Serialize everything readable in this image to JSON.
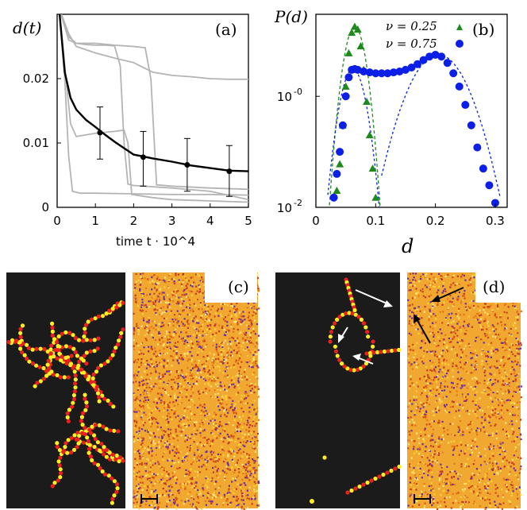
{
  "chart_data": [
    {
      "panel": "(a)",
      "type": "line",
      "ylabel": "d(t)",
      "xlabel": "time t · 10^4",
      "xlim": [
        0,
        5
      ],
      "ylim": [
        0,
        0.03
      ],
      "xticks": [
        "0",
        "1",
        "2",
        "3",
        "4",
        "5"
      ],
      "yticks": [
        "0",
        "0.01",
        "0.02"
      ],
      "series": [
        {
          "color": "#000000",
          "x": [
            0.05,
            0.2,
            0.35,
            0.5,
            0.75,
            1.0,
            1.25,
            1.5,
            1.75,
            2.0,
            2.5,
            3.0,
            3.5,
            4.0,
            4.5,
            5.0
          ],
          "y": [
            0.031,
            0.021,
            0.017,
            0.0152,
            0.0136,
            0.0125,
            0.0113,
            0.0102,
            0.0092,
            0.0082,
            0.0076,
            0.0071,
            0.0065,
            0.0061,
            0.0057,
            0.0056
          ],
          "errorbars": [
            {
              "x": 1.12,
              "y": 0.0116,
              "lo": 0.0075,
              "hi": 0.0156
            },
            {
              "x": 2.25,
              "y": 0.0078,
              "lo": 0.0033,
              "hi": 0.0118
            },
            {
              "x": 3.4,
              "y": 0.0066,
              "lo": 0.0025,
              "hi": 0.0107
            },
            {
              "x": 4.5,
              "y": 0.0056,
              "lo": 0.0017,
              "hi": 0.0096
            }
          ]
        },
        {
          "color": "#b4b4b4",
          "x": [
            0.05,
            0.3,
            0.5,
            1.0,
            1.5,
            2.0,
            2.5,
            3.0,
            3.5,
            4.0,
            4.5,
            5.0
          ],
          "y": [
            0.031,
            0.027,
            0.025,
            0.024,
            0.0232,
            0.0225,
            0.021,
            0.0205,
            0.0203,
            0.02,
            0.0199,
            0.0199
          ]
        },
        {
          "color": "#b4b4b4",
          "x": [
            0.05,
            0.3,
            0.5,
            1.0,
            1.5,
            2.0,
            2.3,
            2.45,
            2.6,
            3.0,
            4.0,
            5.0
          ],
          "y": [
            0.031,
            0.0265,
            0.0255,
            0.0255,
            0.0252,
            0.025,
            0.0248,
            0.02,
            0.0035,
            0.0033,
            0.003,
            0.0028
          ]
        },
        {
          "color": "#b4b4b4",
          "x": [
            0.05,
            0.3,
            0.5,
            0.75,
            1.0,
            1.25,
            1.5,
            1.65,
            1.75,
            1.85,
            2.0,
            3.0,
            4.0,
            5.0
          ],
          "y": [
            0.031,
            0.026,
            0.0255,
            0.0253,
            0.0252,
            0.0252,
            0.0251,
            0.022,
            0.01,
            0.0036,
            0.0034,
            0.003,
            0.0025,
            0.0012
          ]
        },
        {
          "color": "#b4b4b4",
          "x": [
            0.05,
            0.2,
            0.35,
            0.5,
            1.0,
            1.5,
            1.75,
            1.85,
            1.95,
            2.5,
            3.0,
            4.0,
            5.0
          ],
          "y": [
            0.031,
            0.022,
            0.013,
            0.011,
            0.0115,
            0.0118,
            0.012,
            0.01,
            0.002,
            0.0015,
            0.0012,
            0.001,
            0.0008
          ]
        },
        {
          "color": "#b4b4b4",
          "x": [
            0.05,
            0.2,
            0.3,
            0.4,
            0.6,
            1.0,
            2.0,
            3.0,
            4.0,
            5.0
          ],
          "y": [
            0.031,
            0.02,
            0.008,
            0.0025,
            0.0022,
            0.0022,
            0.0021,
            0.002,
            0.002,
            0.0019
          ]
        }
      ]
    },
    {
      "panel": "(b)",
      "type": "scatter",
      "ylabel": "P(d)",
      "xlabel": "d",
      "xlim": [
        0,
        0.32
      ],
      "ylim": [
        0.01,
        30
      ],
      "yscale": "log",
      "xticks": [
        "0",
        "0.1",
        "0.2",
        "0.3"
      ],
      "yticks": [
        "10^-2",
        "10^-0"
      ],
      "legend_position": "top-right",
      "series": [
        {
          "name": "ν = 0.25",
          "marker": "triangle",
          "color": "#1e8a1e",
          "x": [
            0.035,
            0.04,
            0.045,
            0.05,
            0.055,
            0.06,
            0.065,
            0.07,
            0.075,
            0.08,
            0.085,
            0.09,
            0.095,
            0.1
          ],
          "y": [
            0.02,
            0.06,
            0.3,
            1.5,
            6,
            14,
            18,
            16,
            8,
            3,
            0.8,
            0.2,
            0.05,
            0.015
          ]
        },
        {
          "name": "ν = 0.75",
          "marker": "circle",
          "color": "#0b1fe6",
          "x": [
            0.03,
            0.035,
            0.04,
            0.045,
            0.05,
            0.055,
            0.06,
            0.065,
            0.07,
            0.08,
            0.09,
            0.1,
            0.11,
            0.12,
            0.13,
            0.14,
            0.15,
            0.16,
            0.17,
            0.18,
            0.19,
            0.2,
            0.21,
            0.22,
            0.23,
            0.24,
            0.25,
            0.26,
            0.27,
            0.28,
            0.29,
            0.3
          ],
          "y": [
            0.015,
            0.04,
            0.1,
            0.3,
            1.0,
            2.2,
            3.0,
            3.1,
            3.0,
            2.8,
            2.7,
            2.6,
            2.6,
            2.6,
            2.7,
            2.8,
            3.0,
            3.3,
            3.8,
            4.5,
            5.2,
            5.6,
            5.2,
            4.0,
            2.6,
            1.5,
            0.7,
            0.3,
            0.12,
            0.05,
            0.025,
            0.012
          ]
        }
      ]
    }
  ],
  "panel_labels": {
    "a": "(a)",
    "b": "(b)",
    "c": "(c)",
    "d": "(d)"
  },
  "legend": {
    "nu1": "ν = 0.25",
    "nu2": "ν = 0.75"
  }
}
